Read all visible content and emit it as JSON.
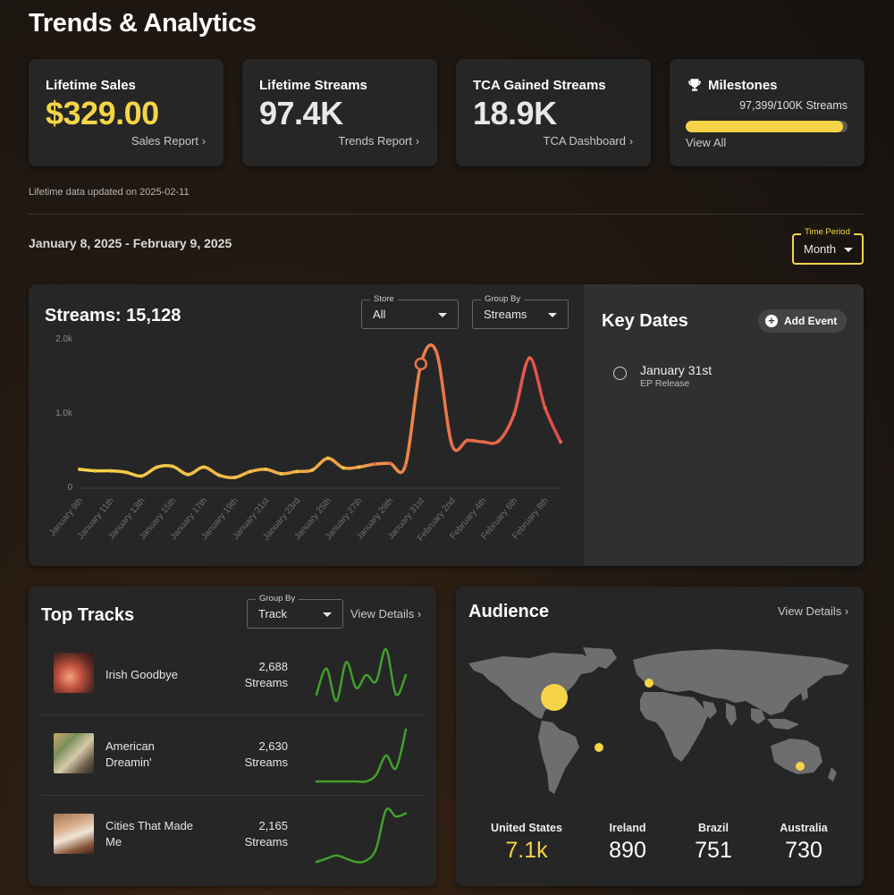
{
  "page": {
    "title": "Trends & Analytics"
  },
  "cards": {
    "sales": {
      "title": "Lifetime Sales",
      "value": "$329.00",
      "value_color": "#f5d547",
      "link": "Sales Report"
    },
    "streams": {
      "title": "Lifetime Streams",
      "value": "97.4K",
      "value_color": "#e8e8e8",
      "link": "Trends Report"
    },
    "tca": {
      "title": "TCA Gained Streams",
      "value": "18.9K",
      "value_color": "#e8e8e8",
      "link": "TCA Dashboard"
    },
    "milestones": {
      "title": "Milestones",
      "icon": "trophy-icon",
      "progress_text": "97,399/100K Streams",
      "progress_fraction": 0.97399,
      "link": "View All"
    }
  },
  "updated_note": "Lifetime data updated on 2025-02-11",
  "date_range": "January 8, 2025 - February 9, 2025",
  "time_period": {
    "label": "Time Period",
    "value": "Month"
  },
  "streams_panel": {
    "title": "Streams: 15,128",
    "store": {
      "label": "Store",
      "value": "All"
    },
    "group_by": {
      "label": "Group By",
      "value": "Streams"
    }
  },
  "key_dates": {
    "title": "Key Dates",
    "add_event": "Add Event",
    "items": [
      {
        "date": "January 31st",
        "desc": "EP Release"
      }
    ]
  },
  "chart_data": {
    "type": "line",
    "ylim": [
      0,
      2000
    ],
    "yticks": [
      "0",
      "1.0k",
      "2.0k"
    ],
    "ytick_values": [
      0,
      1000,
      2000
    ],
    "x": [
      "Jan 9",
      "Jan 10",
      "Jan 11",
      "Jan 12",
      "Jan 13",
      "Jan 14",
      "Jan 15",
      "Jan 16",
      "Jan 17",
      "Jan 18",
      "Jan 19",
      "Jan 20",
      "Jan 21",
      "Jan 22",
      "Jan 23",
      "Jan 24",
      "Jan 25",
      "Jan 26",
      "Jan 27",
      "Jan 28",
      "Jan 29",
      "Jan 30",
      "Jan 31",
      "Feb 1",
      "Feb 2",
      "Feb 3",
      "Feb 4",
      "Feb 5",
      "Feb 6",
      "Feb 7",
      "Feb 8",
      "Feb 9"
    ],
    "xtick_labels": [
      "January 9th",
      "January 11th",
      "January 13th",
      "January 15th",
      "January 17th",
      "January 19th",
      "January 21st",
      "January 23rd",
      "January 25th",
      "January 27th",
      "January 29th",
      "January 31st",
      "February 2nd",
      "February 4th",
      "February 6th",
      "February 8th"
    ],
    "series": [
      {
        "values": [
          230,
          210,
          210,
          190,
          140,
          260,
          270,
          160,
          260,
          150,
          120,
          200,
          230,
          170,
          200,
          220,
          380,
          250,
          260,
          300,
          310,
          280,
          1650,
          1810,
          560,
          620,
          600,
          610,
          970,
          1730,
          1060,
          600
        ]
      }
    ],
    "highlight_index": 22,
    "grid": false,
    "colors": {
      "start": "#f5d547",
      "end": "#e04a4a"
    }
  },
  "top_tracks": {
    "title": "Top Tracks",
    "group_by": {
      "label": "Group By",
      "value": "Track"
    },
    "view_details": "View Details",
    "tracks": [
      {
        "name": "Irish Goodbye",
        "count": "2,688",
        "unit": "Streams",
        "spark": [
          3,
          7,
          2,
          8,
          4,
          6,
          5,
          10,
          3,
          6
        ]
      },
      {
        "name": "American Dreamin'",
        "count": "2,630",
        "unit": "Streams",
        "spark": [
          1,
          1,
          1,
          1,
          1,
          1,
          2,
          5,
          3,
          9
        ]
      },
      {
        "name": "Cities That Made Me",
        "count": "2,165",
        "unit": "Streams",
        "spark": [
          1,
          1.5,
          2,
          1.5,
          1,
          1.2,
          3,
          9,
          8,
          8.5
        ]
      }
    ]
  },
  "audience": {
    "title": "Audience",
    "view_details": "View Details",
    "countries": [
      {
        "name": "United States",
        "value": "7.1k",
        "color": "#f5d547"
      },
      {
        "name": "Ireland",
        "value": "890",
        "color": "#ffffff"
      },
      {
        "name": "Brazil",
        "value": "751",
        "color": "#ffffff"
      },
      {
        "name": "Australia",
        "value": "730",
        "color": "#ffffff"
      }
    ]
  }
}
